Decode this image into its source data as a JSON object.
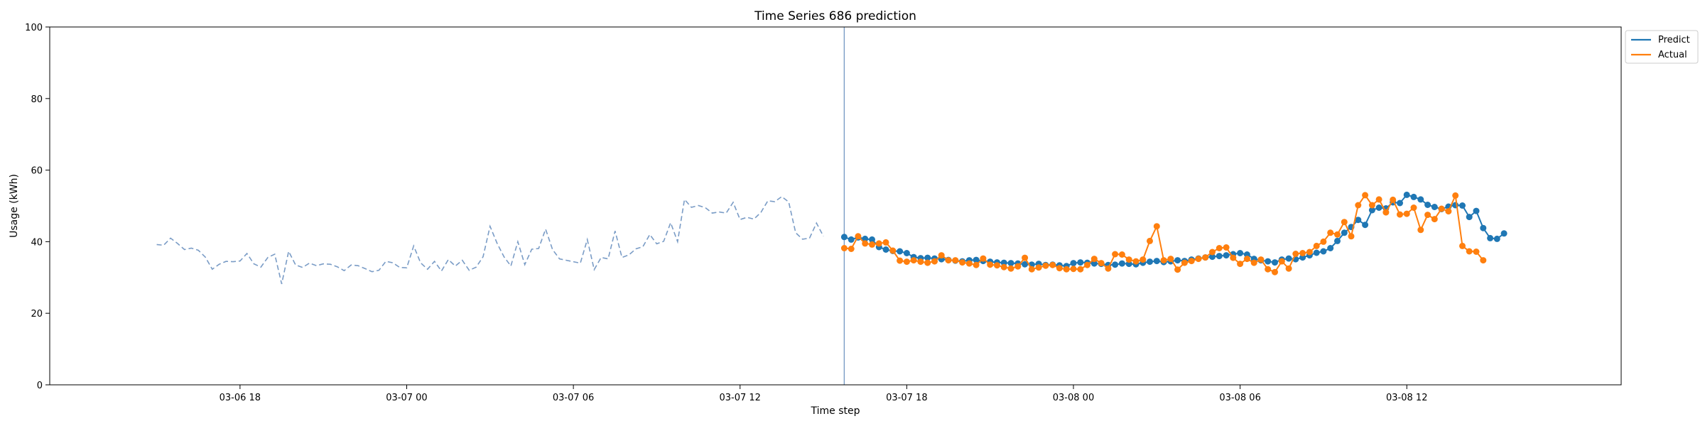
{
  "chart_data": {
    "type": "line",
    "title": "Time Series 686 prediction",
    "xlabel": "Time step",
    "ylabel": "Usage (kWh)",
    "ylim": [
      0,
      100
    ],
    "yticks": [
      0,
      20,
      40,
      60,
      80,
      100
    ],
    "xlim": [
      "2024-03-06 11:09",
      "2024-03-08 19:43"
    ],
    "xticks": [
      {
        "t": "2024-03-06 18:00",
        "label": "03-06 18"
      },
      {
        "t": "2024-03-07 00:00",
        "label": "03-07 00"
      },
      {
        "t": "2024-03-07 06:00",
        "label": "03-07 06"
      },
      {
        "t": "2024-03-07 12:00",
        "label": "03-07 12"
      },
      {
        "t": "2024-03-07 18:00",
        "label": "03-07 18"
      },
      {
        "t": "2024-03-08 00:00",
        "label": "03-08 00"
      },
      {
        "t": "2024-03-08 06:00",
        "label": "03-08 06"
      },
      {
        "t": "2024-03-08 12:00",
        "label": "03-08 12"
      }
    ],
    "grid": false,
    "legend_position": "outside top-right",
    "forecast_start": "2024-03-07 15:45",
    "history": {
      "start": "2024-03-06 15:00",
      "step_minutes": 15,
      "color": "#7a9cc6",
      "style": "dashed",
      "values": [
        39.2,
        39.0,
        41.0,
        39.5,
        37.8,
        38.2,
        37.6,
        35.7,
        32.3,
        33.7,
        34.5,
        34.4,
        34.6,
        36.7,
        33.8,
        32.9,
        35.6,
        36.5,
        28.2,
        37.3,
        33.5,
        32.8,
        34.0,
        33.3,
        33.8,
        33.7,
        33.0,
        31.9,
        33.5,
        33.3,
        32.5,
        31.6,
        32.0,
        34.5,
        34.1,
        32.8,
        32.7,
        38.8,
        34.1,
        32.3,
        34.5,
        31.8,
        35.0,
        33.2,
        34.8,
        32.0,
        32.9,
        35.8,
        44.3,
        39.6,
        35.8,
        33.2,
        40.0,
        33.6,
        37.9,
        38.1,
        43.5,
        37.8,
        35.2,
        34.8,
        34.4,
        34.0,
        40.6,
        32.2,
        35.6,
        35.2,
        43.0,
        35.6,
        36.3,
        38.0,
        38.6,
        42.0,
        39.4,
        40.1,
        45.3,
        40.0,
        51.8,
        49.6,
        50.1,
        49.5,
        48.0,
        48.3,
        48.0,
        51.0,
        46.2,
        46.8,
        46.3,
        48.2,
        51.4,
        51.2,
        52.6,
        51.1,
        42.5,
        40.7,
        41.0,
        45.2,
        41.5
      ]
    },
    "series": [
      {
        "name": "Predict",
        "color": "#1f77b4",
        "start": "2024-03-07 15:45",
        "step_minutes": 15,
        "values": [
          41.3,
          40.6,
          41.2,
          40.8,
          40.6,
          38.5,
          37.8,
          37.4,
          37.3,
          36.8,
          35.7,
          35.4,
          35.5,
          35.3,
          35.1,
          34.9,
          34.7,
          34.5,
          34.8,
          34.9,
          34.6,
          34.4,
          34.2,
          34.1,
          34.0,
          33.9,
          33.7,
          33.6,
          33.8,
          33.5,
          33.6,
          33.4,
          33.2,
          34.0,
          34.2,
          34.1,
          33.9,
          33.8,
          33.5,
          33.6,
          33.9,
          33.8,
          33.7,
          34.1,
          34.4,
          34.6,
          34.3,
          34.5,
          34.8,
          34.6,
          35.0,
          35.3,
          35.6,
          35.8,
          36.0,
          36.2,
          36.5,
          36.8,
          36.4,
          35.2,
          34.8,
          34.5,
          34.2,
          35.0,
          35.3,
          35.1,
          35.6,
          36.2,
          36.9,
          37.3,
          38.2,
          40.2,
          42.5,
          44.1,
          46.1,
          44.7,
          48.8,
          49.5,
          49.3,
          51.0,
          50.8,
          53.1,
          52.5,
          51.8,
          50.3,
          49.7,
          49.1,
          49.8,
          50.2,
          50.1,
          46.9,
          48.6,
          43.8,
          41.0,
          40.8,
          42.3
        ]
      },
      {
        "name": "Actual",
        "color": "#ff7f0e",
        "start": "2024-03-07 15:45",
        "step_minutes": 15,
        "values": [
          38.2,
          38.0,
          41.5,
          39.5,
          39.2,
          39.5,
          39.8,
          37.5,
          34.7,
          34.4,
          34.8,
          34.4,
          34.1,
          34.5,
          36.2,
          34.8,
          34.8,
          34.2,
          33.9,
          33.5,
          35.3,
          33.6,
          33.4,
          32.9,
          32.5,
          33.1,
          35.5,
          32.3,
          32.8,
          33.3,
          33.5,
          32.6,
          32.3,
          32.4,
          32.3,
          33.5,
          35.2,
          34.0,
          32.5,
          36.5,
          36.4,
          35.0,
          34.5,
          35.0,
          40.2,
          44.3,
          34.8,
          35.2,
          32.2,
          34.1,
          34.6,
          35.2,
          35.6,
          37.1,
          38.2,
          38.4,
          35.5,
          33.8,
          35.2,
          34.1,
          35.0,
          32.3,
          31.5,
          34.5,
          32.5,
          36.6,
          36.8,
          37.1,
          38.8,
          40.0,
          42.5,
          42.0,
          45.5,
          41.5,
          50.2,
          53.0,
          50.2,
          51.8,
          48.2,
          51.7,
          47.6,
          47.8,
          49.5,
          43.3,
          47.5,
          46.3,
          49.2,
          48.5,
          52.9,
          38.8,
          37.3,
          37.2,
          34.8
        ]
      }
    ]
  }
}
